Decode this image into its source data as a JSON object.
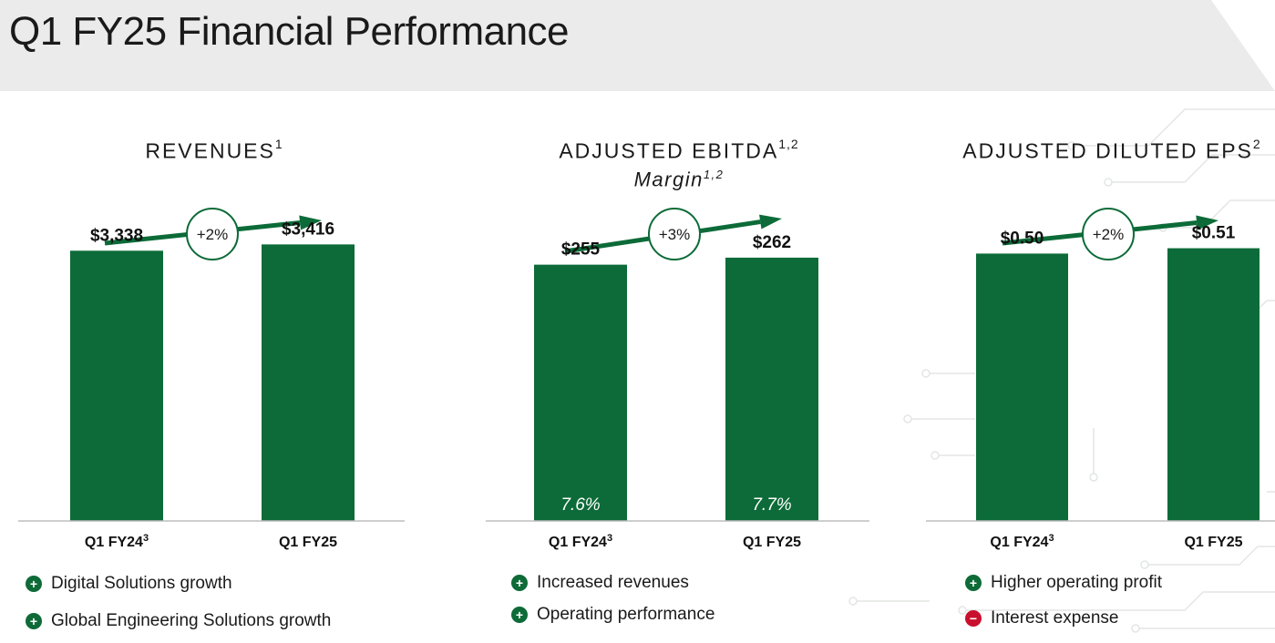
{
  "page": {
    "title": "Q1 FY25 Financial Performance"
  },
  "colors": {
    "bar": "#0c6b38",
    "arrow": "#0c6b38",
    "positive": "#0e6b38",
    "negative": "#c8102e"
  },
  "panels": [
    {
      "title": "REVENUES",
      "title_sup": "1",
      "subtitle": "",
      "subtitle_sup": "",
      "growth": "+2%",
      "bullets": [
        {
          "sign": "plus",
          "text": "Digital Solutions growth"
        },
        {
          "sign": "plus",
          "text": "Global Engineering Solutions growth"
        }
      ]
    },
    {
      "title": "ADJUSTED EBITDA",
      "title_sup": "1,2",
      "subtitle": "Margin",
      "subtitle_sup": "1,2",
      "growth": "+3%",
      "bullets": [
        {
          "sign": "plus",
          "text": "Increased revenues"
        },
        {
          "sign": "plus",
          "text": "Operating performance"
        }
      ]
    },
    {
      "title": "ADJUSTED DILUTED EPS",
      "title_sup": "2",
      "subtitle": "",
      "subtitle_sup": "",
      "growth": "+2%",
      "bullets": [
        {
          "sign": "plus",
          "text": "Higher operating profit"
        },
        {
          "sign": "minus",
          "text": "Interest expense"
        }
      ]
    }
  ],
  "chart_data": [
    {
      "type": "bar",
      "title": "REVENUES",
      "categories": [
        "Q1 FY24",
        "Q1 FY25"
      ],
      "category_sups": [
        "3",
        ""
      ],
      "values": [
        3338,
        3416
      ],
      "labels": [
        "$3,338",
        "$3,416"
      ],
      "inner_labels": [
        "",
        ""
      ],
      "ylim": [
        0,
        3600
      ]
    },
    {
      "type": "bar",
      "title": "ADJUSTED EBITDA",
      "categories": [
        "Q1 FY24",
        "Q1 FY25"
      ],
      "category_sups": [
        "3",
        ""
      ],
      "values": [
        255,
        262
      ],
      "labels": [
        "$255",
        "$262"
      ],
      "inner_labels": [
        "7.6%",
        "7.7%"
      ],
      "ylim": [
        0,
        290
      ]
    },
    {
      "type": "bar",
      "title": "ADJUSTED DILUTED EPS",
      "categories": [
        "Q1 FY24",
        "Q1 FY25"
      ],
      "category_sups": [
        "3",
        ""
      ],
      "values": [
        0.5,
        0.51
      ],
      "labels": [
        "$0.50",
        "$0.51"
      ],
      "inner_labels": [
        "",
        ""
      ],
      "ylim": [
        0,
        0.545
      ]
    }
  ]
}
